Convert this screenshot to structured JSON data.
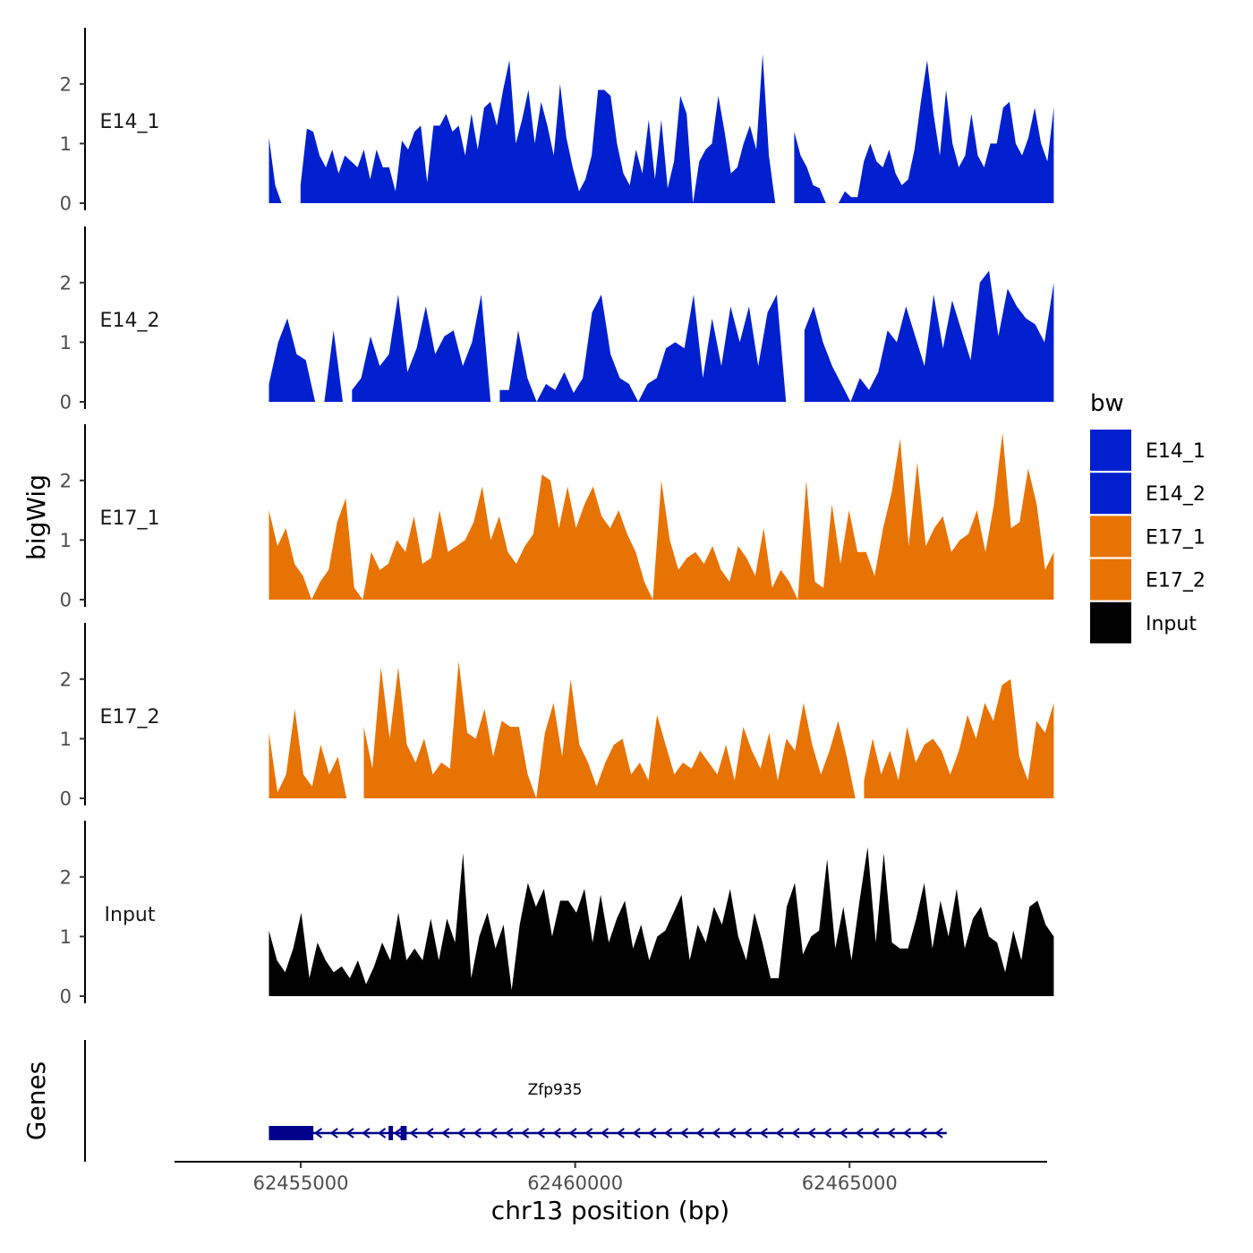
{
  "chart_data": {
    "type": "area",
    "ylabel": "bigWig",
    "xlabel": "chr13 position (bp)",
    "xlim": [
      62452700,
      62468600
    ],
    "ylim": [
      0,
      2.9
    ],
    "x_ticks": [
      62455000,
      62460000,
      62465000
    ],
    "x_tick_labels": [
      "62455000",
      "62460000",
      "62465000"
    ],
    "y_ticks": [
      0,
      1,
      2
    ],
    "y_tick_labels": [
      "0",
      "1",
      "2"
    ],
    "legend": {
      "title": "bw",
      "entries": [
        {
          "label": "E14_1",
          "color": "#0020d0"
        },
        {
          "label": "E14_2",
          "color": "#0020d0"
        },
        {
          "label": "E17_1",
          "color": "#e87305"
        },
        {
          "label": "E17_2",
          "color": "#e87305"
        },
        {
          "label": "Input",
          "color": "#000000"
        }
      ]
    },
    "x_start": 62454420,
    "x_end": 62468720,
    "series": [
      {
        "name": "E14_1",
        "color": "#0020d0",
        "values": [
          1.1,
          0.3,
          0,
          0,
          0,
          0.3,
          1.25,
          1.2,
          0.8,
          0.6,
          0.9,
          0.5,
          0.8,
          0.7,
          0.6,
          0.9,
          0.4,
          0.9,
          0.6,
          0.6,
          0.2,
          1.05,
          0.9,
          1.2,
          1.3,
          0.35,
          1.3,
          1.3,
          1.5,
          1.2,
          1.3,
          0.8,
          1.5,
          0.9,
          1.6,
          1.7,
          1.3,
          1.9,
          2.4,
          1.0,
          1.4,
          1.9,
          1.0,
          1.7,
          1.3,
          0.8,
          2.0,
          1.1,
          0.6,
          0.2,
          0.4,
          0.8,
          1.9,
          1.9,
          1.8,
          1.0,
          0.5,
          0.3,
          0.9,
          0.5,
          1.4,
          0.4,
          1.4,
          0.25,
          0.7,
          1.8,
          1.5,
          0,
          0.7,
          0.9,
          1.0,
          1.8,
          1.2,
          0.5,
          0.6,
          1.0,
          1.3,
          0.9,
          2.5,
          0.8,
          0.3,
          0,
          1.4,
          1.2,
          0.8,
          0.6,
          0.3,
          0.25,
          0,
          0,
          0,
          0.2,
          0.1,
          0.1,
          0.7,
          1.0,
          0.7,
          0.6,
          0.9,
          0.5,
          0.3,
          0.4,
          0.9,
          1.7,
          2.4,
          1.5,
          0.8,
          1.9,
          1.0,
          0.6,
          0.8,
          1.5,
          0.8,
          0.6,
          1.0,
          1.0,
          1.6,
          1.7,
          1.0,
          0.8,
          1.1,
          1.6,
          1.0,
          0.7,
          1.6
        ],
        "gaps": [
          [
            62454780,
            62454980
          ],
          [
            62463600,
            62463960
          ]
        ]
      },
      {
        "name": "E14_2",
        "color": "#0020d0",
        "values": [
          0.3,
          1.0,
          1.4,
          0.8,
          0.7,
          0.4,
          0,
          1.2,
          0,
          0.2,
          0.4,
          1.1,
          0.6,
          0.8,
          1.8,
          0.5,
          0.9,
          1.6,
          0.8,
          1.1,
          1.2,
          0.6,
          1.0,
          1.8,
          1.0,
          0.2,
          0.2,
          1.2,
          0.4,
          0,
          0.3,
          0.2,
          0.5,
          0.15,
          0.4,
          1.5,
          1.8,
          0.8,
          0.4,
          0.3,
          0,
          0.3,
          0.4,
          0.9,
          1.0,
          0.9,
          1.8,
          0.4,
          1.4,
          0.6,
          1.6,
          1.0,
          1.6,
          0.6,
          1.5,
          1.8,
          1.1,
          0.4,
          1.2,
          1.6,
          1.0,
          0.6,
          0.3,
          0,
          0.4,
          0.2,
          0.5,
          1.2,
          1.0,
          1.6,
          1.1,
          0.6,
          1.8,
          0.9,
          1.7,
          1.2,
          0.7,
          2.0,
          2.2,
          1.1,
          1.9,
          1.6,
          1.4,
          1.3,
          1.0,
          2.0
        ],
        "gaps": [
          [
            62455200,
            62455320
          ],
          [
            62455640,
            62455860
          ],
          [
            62458440,
            62458560
          ],
          [
            62463800,
            62464020
          ]
        ]
      },
      {
        "name": "E17_1",
        "color": "#e87305",
        "values": [
          1.5,
          0.9,
          1.2,
          0.6,
          0.4,
          0,
          0.3,
          0.5,
          1.3,
          1.7,
          0.2,
          0,
          0.8,
          0.5,
          0.6,
          1.0,
          0.8,
          1.4,
          0.6,
          0.7,
          1.5,
          0.8,
          0.9,
          1.0,
          1.3,
          1.9,
          1.0,
          1.4,
          0.8,
          0.6,
          0.9,
          1.1,
          2.1,
          2.0,
          1.2,
          1.9,
          1.2,
          1.6,
          1.9,
          1.4,
          1.2,
          1.5,
          1.1,
          0.8,
          0.3,
          0,
          2.0,
          1.0,
          0.5,
          0.7,
          0.8,
          0.6,
          0.9,
          0.5,
          0.3,
          0.9,
          0.7,
          0.4,
          1.2,
          0.2,
          0.5,
          0.3,
          0,
          2.0,
          0.3,
          0.2,
          1.6,
          0.6,
          1.5,
          0.8,
          0.8,
          0.4,
          1.2,
          1.8,
          2.7,
          0.9,
          2.3,
          0.9,
          1.2,
          1.4,
          0.8,
          1.0,
          1.1,
          1.5,
          0.8,
          1.6,
          2.8,
          1.2,
          1.3,
          2.2,
          1.6,
          0.5,
          0.8
        ],
        "gaps": [
          [
            62463640,
            62463740
          ]
        ]
      },
      {
        "name": "E17_2",
        "color": "#e87305",
        "values": [
          1.1,
          0.1,
          0.4,
          1.5,
          0.4,
          0.2,
          0.9,
          0.4,
          0.7,
          0.3,
          0,
          1.2,
          0.5,
          2.2,
          1.0,
          2.2,
          0.9,
          0.6,
          1.0,
          0.4,
          0.6,
          0.5,
          2.3,
          1.1,
          1.0,
          1.5,
          0.7,
          1.3,
          1.2,
          1.2,
          0.4,
          0,
          1.1,
          1.6,
          0.7,
          2.0,
          0.9,
          0.6,
          0.2,
          0.6,
          0.9,
          1.0,
          0.4,
          0.6,
          0.3,
          1.4,
          0.9,
          0.4,
          0.6,
          0.5,
          0.8,
          0.6,
          0.4,
          0.9,
          0.3,
          1.2,
          0.8,
          0.5,
          1.1,
          0.3,
          1.0,
          0.8,
          1.6,
          0.9,
          0.4,
          0.8,
          1.3,
          0.7,
          0.9,
          0.3,
          1.0,
          0.4,
          0.8,
          0.3,
          1.2,
          0.6,
          0.9,
          1.0,
          0.8,
          0.4,
          0.8,
          1.4,
          1.0,
          1.6,
          1.3,
          1.9,
          2.0,
          0.7,
          0.3,
          1.3,
          1.1,
          1.6
        ],
        "gaps": [
          [
            62455760,
            62456060
          ],
          [
            62465100,
            62465220
          ]
        ]
      },
      {
        "name": "Input",
        "color": "#000000",
        "values": [
          1.1,
          0.6,
          0.4,
          0.8,
          1.4,
          0.3,
          0.9,
          0.6,
          0.4,
          0.5,
          0.3,
          0.6,
          0.2,
          0.5,
          0.9,
          0.6,
          1.4,
          0.6,
          0.8,
          0.6,
          1.3,
          0.6,
          1.3,
          0.9,
          2.4,
          0.3,
          1.0,
          1.4,
          0.8,
          1.2,
          0.1,
          1.2,
          1.9,
          1.5,
          1.8,
          1.0,
          1.6,
          1.6,
          1.4,
          1.8,
          0.9,
          1.7,
          0.9,
          1.3,
          1.6,
          0.8,
          1.2,
          0.6,
          1.0,
          1.1,
          1.4,
          1.7,
          0.6,
          1.2,
          0.9,
          1.5,
          1.2,
          1.8,
          1.0,
          0.6,
          1.4,
          0.9,
          0.3,
          0.3,
          1.5,
          1.9,
          0.7,
          1.0,
          1.1,
          2.3,
          0.8,
          1.5,
          0.6,
          1.6,
          2.5,
          0.9,
          2.4,
          0.9,
          0.8,
          0.8,
          1.3,
          1.9,
          0.8,
          1.6,
          1.0,
          1.8,
          0.8,
          1.3,
          1.5,
          1.0,
          0.9,
          0.4,
          1.1,
          0.6,
          1.5,
          1.6,
          1.2,
          1.0
        ],
        "gaps": []
      }
    ],
    "genes": {
      "title": "Genes",
      "label": "Zfp935",
      "strand": "-",
      "color": "#00008b",
      "start": 62454420,
      "end": 62466770,
      "exons": [
        [
          62454420,
          62455230
        ],
        [
          62456600,
          62456680
        ],
        [
          62456820,
          62456930
        ]
      ],
      "arrow_spacing_bp": 290
    }
  }
}
